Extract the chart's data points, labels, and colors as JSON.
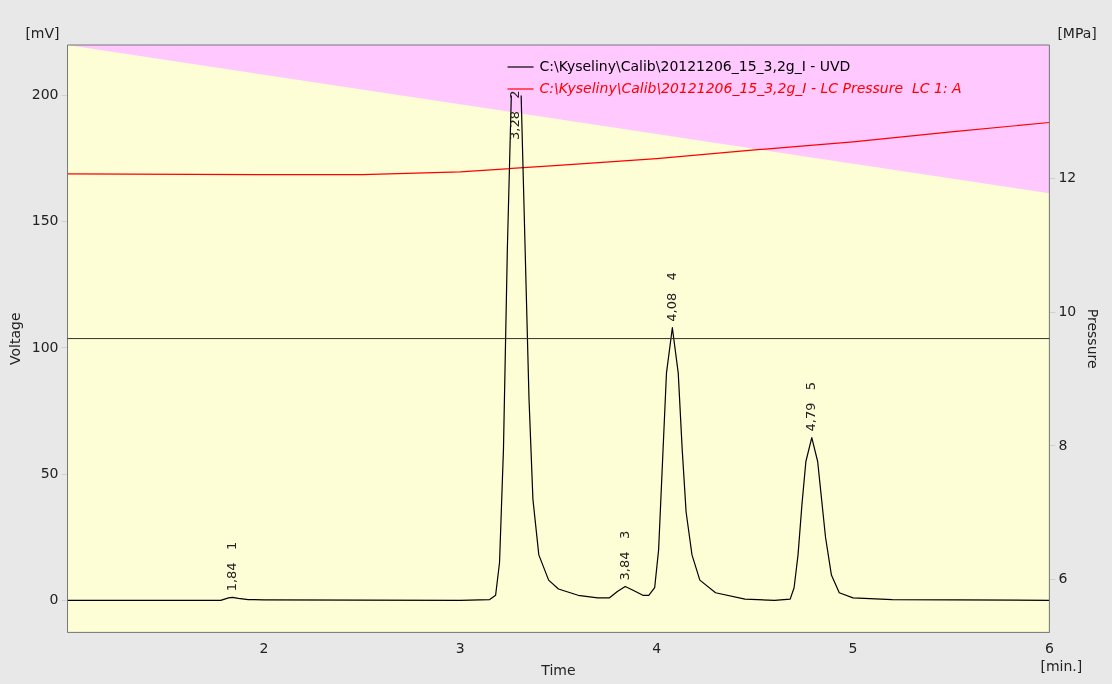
{
  "chart_data": {
    "type": "line",
    "xlabel": "Time",
    "ylabel": "Voltage",
    "y2label": "Pressure",
    "xlim": [
      1,
      6
    ],
    "xticks": [
      2,
      3,
      4,
      5,
      6
    ],
    "ylim": [
      -12.7,
      220
    ],
    "yticks": [
      0,
      50,
      100,
      150,
      200
    ],
    "y2lim": [
      5.21,
      14
    ],
    "y2ticks": [
      6,
      8,
      10,
      12
    ],
    "grid": false,
    "legend": "top",
    "marker": "none",
    "line_style": "solid",
    "series": [
      {
        "type": "area",
        "axis": "y2",
        "color": "#ffc8ff",
        "x": [
          1,
          6
        ],
        "values": [
          14,
          11.78
        ]
      },
      {
        "name": "C:\\Kyseliny\\Calib\\20121206_15_3,2g_I - UVD",
        "color": "#000000",
        "x": [
          1,
          1.78,
          1.82,
          1.84,
          1.87,
          1.92,
          2,
          3,
          3.15,
          3.18,
          3.2,
          3.22,
          3.24,
          3.26,
          3.27,
          3.3,
          3.31,
          3.33,
          3.35,
          3.37,
          3.4,
          3.45,
          3.5,
          3.6,
          3.7,
          3.76,
          3.8,
          3.84,
          3.88,
          3.93,
          3.96,
          3.99,
          4.01,
          4.03,
          4.05,
          4.08,
          4.11,
          4.13,
          4.15,
          4.18,
          4.22,
          4.3,
          4.45,
          4.6,
          4.68,
          4.7,
          4.72,
          4.74,
          4.76,
          4.79,
          4.82,
          4.84,
          4.86,
          4.89,
          4.93,
          5,
          5.2,
          6
        ],
        "values": [
          0,
          0,
          1,
          1.2,
          0.8,
          0.3,
          0.2,
          0,
          0.3,
          2,
          15,
          60,
          140,
          200,
          null,
          null,
          200,
          140,
          80,
          40,
          18,
          8,
          4.5,
          2,
          1,
          1,
          3.5,
          5.5,
          4,
          2,
          2,
          5,
          20,
          55,
          90,
          108,
          90,
          60,
          35,
          18,
          8,
          3,
          0.5,
          0,
          0.5,
          5,
          18,
          38,
          55,
          64.5,
          55,
          40,
          25,
          10,
          3,
          1,
          0.3,
          0
        ]
      },
      {
        "name": "C:\\Kyseliny\\Calib\\20121206_15_3,2g_I - LC Pressure  LC 1: A",
        "color": "#ff0000",
        "axis": "y2",
        "x": [
          1,
          2,
          2.5,
          3,
          3.5,
          4,
          4.5,
          5,
          5.5,
          6
        ],
        "values": [
          12.07,
          12.06,
          12.06,
          12.1,
          12.2,
          12.3,
          12.43,
          12.55,
          12.7,
          12.84
        ]
      }
    ],
    "ref_lines": [
      {
        "axis": "y",
        "value": 103.7,
        "color": "#333333"
      }
    ],
    "annotations": [
      "[mV]",
      "[MPa]",
      "[min.]",
      {
        "text": "1,84   1",
        "x": 1.84,
        "y": 1.2
      },
      {
        "text": "3,28   2",
        "x": 3.28,
        "y": 180
      },
      {
        "text": "3,84   3",
        "x": 3.84,
        "y": 5.5
      },
      {
        "text": "4,08   4",
        "x": 4.08,
        "y": 108
      },
      {
        "text": "4,79   5",
        "x": 4.79,
        "y": 64.5
      }
    ]
  }
}
